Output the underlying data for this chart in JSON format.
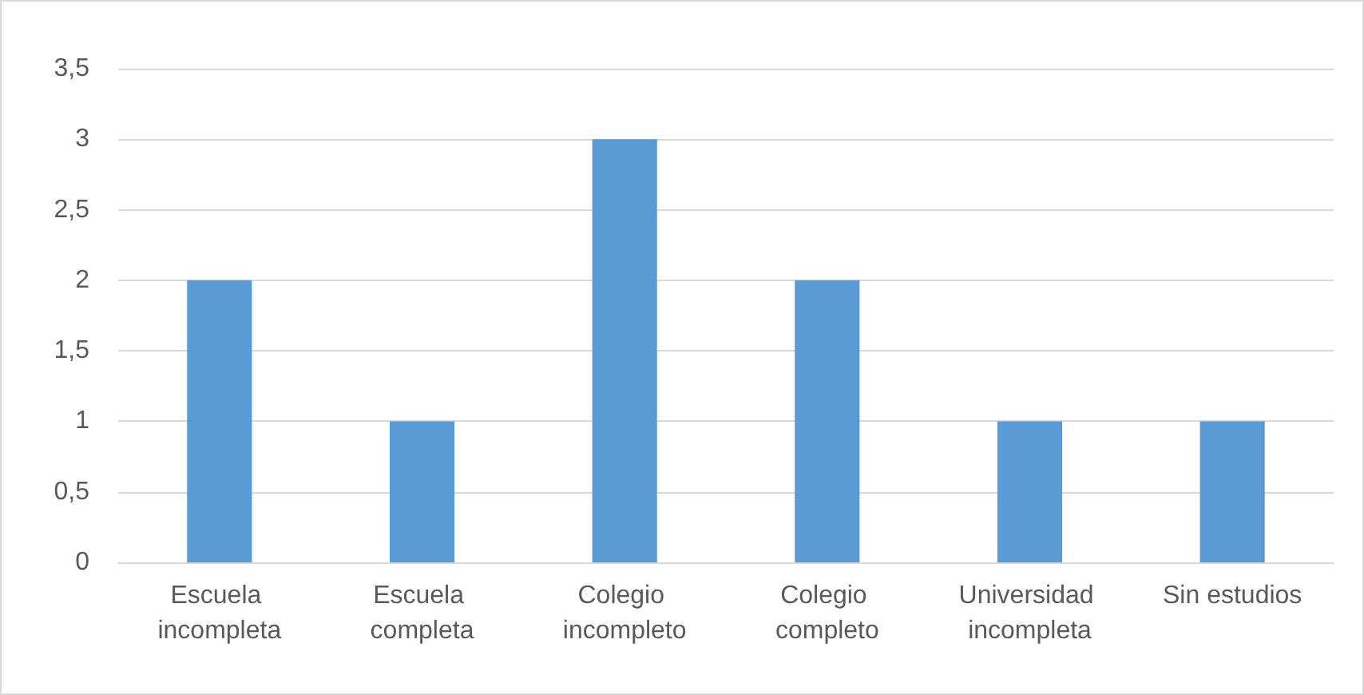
{
  "chart_data": {
    "type": "bar",
    "categories": [
      "Escuela incompleta",
      "Escuela completa",
      "Colegio incompleto",
      "Colegio completo",
      "Universidad incompleta",
      "Sin estudios"
    ],
    "values": [
      2,
      1,
      3,
      2,
      1,
      1
    ],
    "color": "#5b9bd5",
    "ylim": [
      0,
      3.5
    ],
    "yticks": [
      0,
      {
        "value": 0.5,
        "label": "0,5"
      },
      1,
      {
        "value": 1.5,
        "label": "1,5"
      },
      2,
      {
        "value": 2.5,
        "label": "2,5"
      },
      3,
      {
        "value": 3.5,
        "label": "3,5"
      }
    ],
    "grid": true
  }
}
